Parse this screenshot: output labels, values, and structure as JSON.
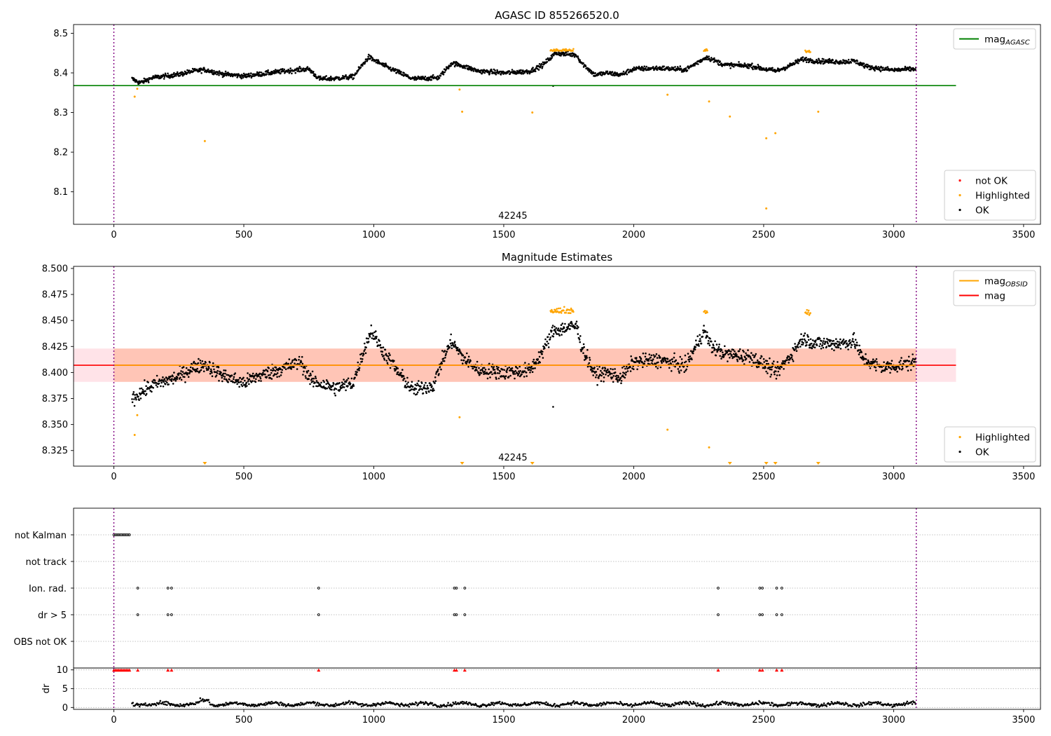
{
  "figure": {
    "colors": {
      "ok": "#000000",
      "highlighted": "#ffa500",
      "not_ok": "#ff0000",
      "agasc_line": "#008000",
      "mag_line": "#ff0000",
      "mag_obsid_line": "#ffa500",
      "mag_band": "#ffc0cb",
      "obsid_band": "#ffa07a",
      "obs_boundary": "#800080"
    }
  },
  "chart_data": [
    {
      "id": "agasc",
      "type": "scatter",
      "title": "AGASC ID 855266520.0",
      "xlim": [
        -155,
        3565
      ],
      "ylim": [
        8.018,
        8.522
      ],
      "xticks": [
        0,
        500,
        1000,
        1500,
        2000,
        2500,
        3000,
        3500
      ],
      "yticks": [
        8.1,
        8.2,
        8.3,
        8.4,
        8.5
      ],
      "grid": false,
      "obs_boundaries": [
        0,
        3087
      ],
      "obsid_annotation": {
        "text": "42245",
        "x": 1535
      },
      "reference_lines": [
        {
          "name": "mag_AGASC",
          "y": 8.368,
          "x_range": [
            -155,
            3240
          ],
          "color": "#008000"
        }
      ],
      "highlighted_points": [
        [
          80,
          8.34
        ],
        [
          90,
          8.36
        ],
        [
          350,
          8.228
        ],
        [
          1330,
          8.358
        ],
        [
          1340,
          8.302
        ],
        [
          1610,
          8.3
        ],
        [
          2130,
          8.345
        ],
        [
          2290,
          8.328
        ],
        [
          2370,
          8.29
        ],
        [
          2510,
          8.235
        ],
        [
          2510,
          8.058
        ],
        [
          2545,
          8.248
        ],
        [
          2710,
          8.302
        ]
      ],
      "ok_trend": [
        [
          70,
          8.385
        ],
        [
          100,
          8.375
        ],
        [
          150,
          8.388
        ],
        [
          250,
          8.396
        ],
        [
          300,
          8.404
        ],
        [
          350,
          8.408
        ],
        [
          420,
          8.397
        ],
        [
          500,
          8.392
        ],
        [
          550,
          8.396
        ],
        [
          650,
          8.404
        ],
        [
          750,
          8.41
        ],
        [
          790,
          8.385
        ],
        [
          850,
          8.386
        ],
        [
          920,
          8.39
        ],
        [
          980,
          8.44
        ],
        [
          1050,
          8.415
        ],
        [
          1100,
          8.4
        ],
        [
          1150,
          8.385
        ],
        [
          1250,
          8.388
        ],
        [
          1300,
          8.425
        ],
        [
          1340,
          8.418
        ],
        [
          1400,
          8.405
        ],
        [
          1500,
          8.4
        ],
        [
          1600,
          8.404
        ],
        [
          1650,
          8.42
        ],
        [
          1700,
          8.45
        ],
        [
          1780,
          8.445
        ],
        [
          1800,
          8.425
        ],
        [
          1850,
          8.395
        ],
        [
          1900,
          8.4
        ],
        [
          1950,
          8.395
        ],
        [
          2000,
          8.41
        ],
        [
          2100,
          8.412
        ],
        [
          2200,
          8.408
        ],
        [
          2280,
          8.44
        ],
        [
          2350,
          8.42
        ],
        [
          2450,
          8.418
        ],
        [
          2500,
          8.41
        ],
        [
          2550,
          8.405
        ],
        [
          2600,
          8.418
        ],
        [
          2650,
          8.435
        ],
        [
          2700,
          8.43
        ],
        [
          2800,
          8.428
        ],
        [
          2850,
          8.43
        ],
        [
          2900,
          8.415
        ],
        [
          3000,
          8.407
        ],
        [
          3080,
          8.41
        ]
      ],
      "ok_spread": 0.006,
      "highlight_runs": [
        [
          1680,
          1770,
          8.455
        ],
        [
          2270,
          2285,
          8.455
        ],
        [
          2660,
          2680,
          8.452
        ]
      ],
      "outliers": [
        [
          1690,
          8.367
        ]
      ],
      "legends": [
        {
          "position": "upper right",
          "entries": [
            {
              "kind": "line",
              "color": "#008000",
              "label": "mag",
              "sub": "AGASC"
            }
          ]
        },
        {
          "position": "lower right",
          "entries": [
            {
              "kind": "dot",
              "color": "#ff0000",
              "label": "not OK"
            },
            {
              "kind": "dot",
              "color": "#ffa500",
              "label": "Highlighted"
            },
            {
              "kind": "dot",
              "color": "#000000",
              "label": "OK"
            }
          ]
        }
      ]
    },
    {
      "id": "estimates",
      "type": "scatter",
      "title": "Magnitude Estimates",
      "xlim": [
        -155,
        3565
      ],
      "ylim": [
        8.31,
        8.502
      ],
      "xticks": [
        0,
        500,
        1000,
        1500,
        2000,
        2500,
        3000,
        3500
      ],
      "yticks": [
        8.325,
        8.35,
        8.375,
        8.4,
        8.425,
        8.45,
        8.475,
        8.5
      ],
      "ytick_labels": [
        "8.325",
        "8.350",
        "8.375",
        "8.400",
        "8.425",
        "8.450",
        "8.475",
        "8.500"
      ],
      "grid": false,
      "obs_boundaries": [
        0,
        3087
      ],
      "obsid_annotation": {
        "text": "42245",
        "x": 1535
      },
      "reference_lines": [
        {
          "name": "mag",
          "y": 8.407,
          "x_range": [
            -155,
            3240
          ],
          "color": "#ff0000"
        },
        {
          "name": "mag_OBSID",
          "y": 8.407,
          "x_range": [
            0,
            3087
          ],
          "color": "#ffa500"
        }
      ],
      "bands": [
        {
          "y_range": [
            8.391,
            8.423
          ],
          "x_range": [
            -155,
            3240
          ],
          "color": "#ffc0cb"
        },
        {
          "y_range": [
            8.391,
            8.423
          ],
          "x_range": [
            0,
            3087
          ],
          "color": "#ffa07a"
        }
      ],
      "highlighted_points": [
        [
          80,
          8.34
        ],
        [
          90,
          8.359
        ],
        [
          1330,
          8.357
        ],
        [
          2130,
          8.345
        ],
        [
          2290,
          8.328
        ]
      ],
      "clipped_low_markers": [
        350,
        1340,
        1610,
        2370,
        2510,
        2545,
        2710
      ],
      "ok_trend": [
        [
          70,
          8.375
        ],
        [
          100,
          8.38
        ],
        [
          150,
          8.388
        ],
        [
          250,
          8.396
        ],
        [
          300,
          8.404
        ],
        [
          350,
          8.408
        ],
        [
          420,
          8.397
        ],
        [
          500,
          8.39
        ],
        [
          550,
          8.396
        ],
        [
          650,
          8.404
        ],
        [
          720,
          8.41
        ],
        [
          760,
          8.392
        ],
        [
          850,
          8.385
        ],
        [
          920,
          8.39
        ],
        [
          960,
          8.42
        ],
        [
          990,
          8.44
        ],
        [
          1050,
          8.415
        ],
        [
          1100,
          8.398
        ],
        [
          1150,
          8.383
        ],
        [
          1230,
          8.388
        ],
        [
          1260,
          8.41
        ],
        [
          1300,
          8.43
        ],
        [
          1340,
          8.415
        ],
        [
          1400,
          8.403
        ],
        [
          1500,
          8.4
        ],
        [
          1600,
          8.402
        ],
        [
          1650,
          8.42
        ],
        [
          1690,
          8.44
        ],
        [
          1780,
          8.445
        ],
        [
          1800,
          8.425
        ],
        [
          1850,
          8.398
        ],
        [
          1900,
          8.4
        ],
        [
          1950,
          8.395
        ],
        [
          2000,
          8.41
        ],
        [
          2100,
          8.412
        ],
        [
          2200,
          8.406
        ],
        [
          2270,
          8.44
        ],
        [
          2300,
          8.425
        ],
        [
          2350,
          8.418
        ],
        [
          2450,
          8.415
        ],
        [
          2500,
          8.408
        ],
        [
          2550,
          8.4
        ],
        [
          2600,
          8.415
        ],
        [
          2650,
          8.433
        ],
        [
          2700,
          8.428
        ],
        [
          2800,
          8.428
        ],
        [
          2850,
          8.43
        ],
        [
          2880,
          8.413
        ],
        [
          2950,
          8.405
        ],
        [
          3000,
          8.406
        ],
        [
          3080,
          8.41
        ]
      ],
      "ok_spread": 0.007,
      "highlight_runs": [
        [
          1680,
          1770,
          8.457
        ],
        [
          2270,
          2285,
          8.457
        ],
        [
          2660,
          2680,
          8.455
        ]
      ],
      "outliers": [
        [
          1690,
          8.367
        ]
      ],
      "legends": [
        {
          "position": "upper right",
          "entries": [
            {
              "kind": "line",
              "color": "#ffa500",
              "label": "mag",
              "sub": "OBSID"
            },
            {
              "kind": "line",
              "color": "#ff0000",
              "label": "mag"
            }
          ]
        },
        {
          "position": "lower right",
          "entries": [
            {
              "kind": "dot",
              "color": "#ffa500",
              "label": "Highlighted"
            },
            {
              "kind": "dot",
              "color": "#000000",
              "label": "OK"
            }
          ]
        }
      ]
    },
    {
      "id": "flags",
      "type": "scatter",
      "xlim": [
        -155,
        3565
      ],
      "categories": [
        "not Kalman",
        "not track",
        "Ion. rad.",
        "dr > 5",
        "OBS not OK"
      ],
      "grid": true,
      "obs_boundaries": [
        0,
        3087
      ],
      "flag_points": {
        "not Kalman": [
          0,
          6,
          12,
          18,
          24,
          30,
          36,
          42,
          48,
          54,
          60
        ],
        "not track": [],
        "Ion. rad.": [
          92,
          208,
          222,
          788,
          1310,
          1318,
          1350,
          2325,
          2485,
          2495,
          2550,
          2570
        ],
        "dr > 5": [
          92,
          208,
          222,
          788,
          1310,
          1318,
          1350,
          2325,
          2485,
          2495,
          2550,
          2570
        ],
        "OBS not OK": []
      }
    },
    {
      "id": "dr",
      "type": "scatter",
      "ylabel": "dr",
      "xlim": [
        -155,
        3565
      ],
      "ylim": [
        -0.5,
        10.5
      ],
      "xticks": [
        0,
        500,
        1000,
        1500,
        2000,
        2500,
        3000,
        3500
      ],
      "yticks": [
        0,
        5,
        10
      ],
      "grid": true,
      "obs_boundaries": [
        0,
        3087
      ],
      "threshold_line": 10.5,
      "clipped_high_markers": [
        0,
        6,
        12,
        18,
        24,
        30,
        36,
        42,
        48,
        54,
        60,
        92,
        208,
        222,
        788,
        1310,
        1318,
        1350,
        2325,
        2485,
        2495,
        2550,
        2570
      ],
      "dr_range": [
        70,
        3087
      ],
      "dr_typical": [
        0.2,
        1.6
      ]
    }
  ]
}
